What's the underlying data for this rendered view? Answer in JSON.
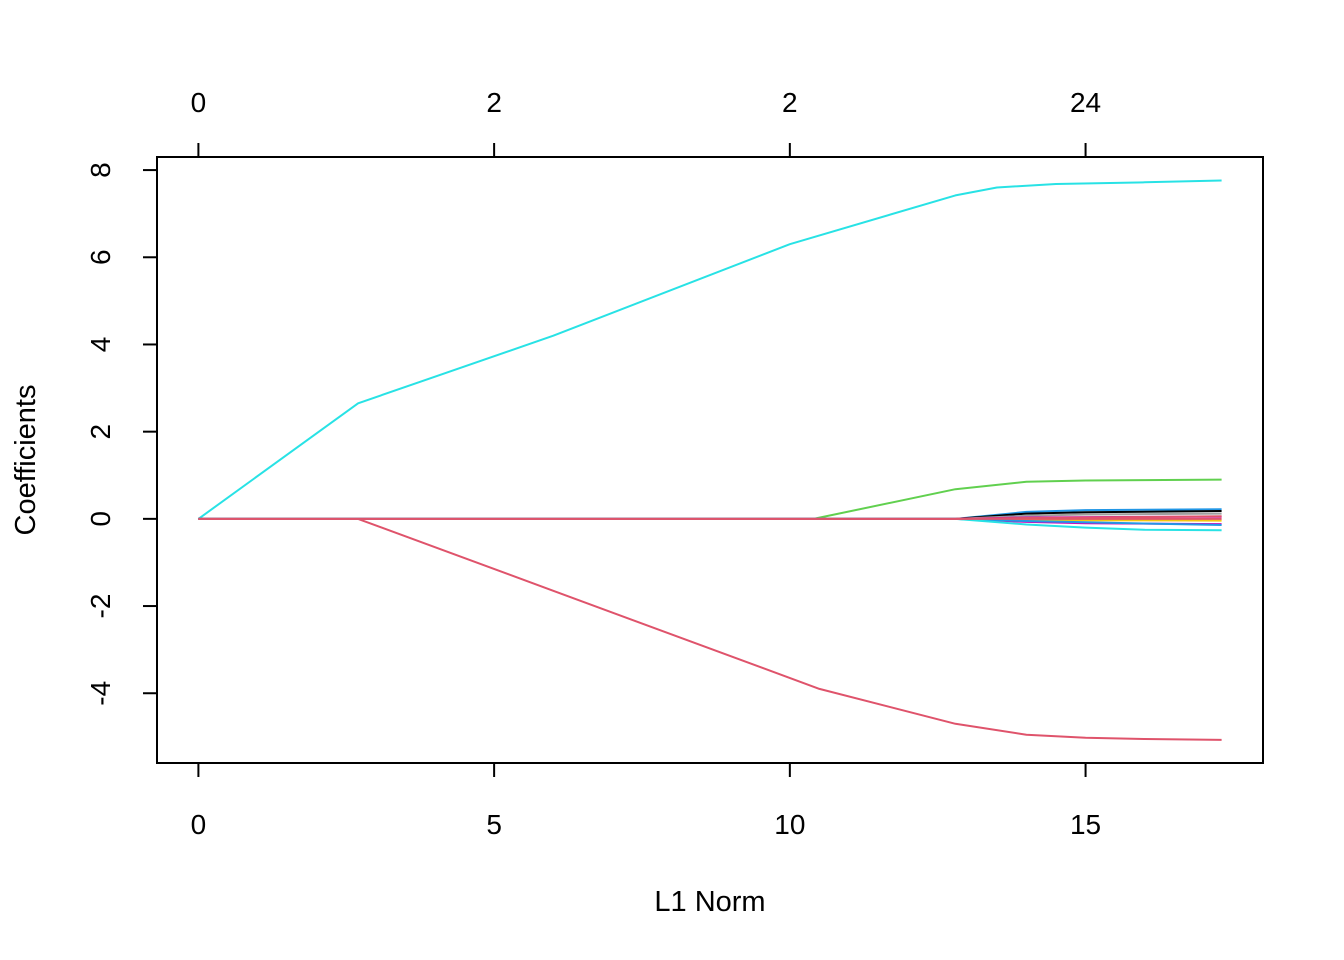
{
  "chart_data": {
    "type": "line",
    "title": "",
    "xlabel": "L1 Norm",
    "ylabel": "Coefficients",
    "xlim": [
      -0.7,
      18
    ],
    "ylim": [
      -5.6,
      8.3
    ],
    "x_ticks": [
      {
        "value": 0,
        "label": "0"
      },
      {
        "value": 5,
        "label": "5"
      },
      {
        "value": 10,
        "label": "10"
      },
      {
        "value": 15,
        "label": "15"
      }
    ],
    "y_ticks": [
      {
        "value": -4,
        "label": "-4"
      },
      {
        "value": -2,
        "label": "-2"
      },
      {
        "value": 0,
        "label": "0"
      },
      {
        "value": 2,
        "label": "2"
      },
      {
        "value": 4,
        "label": "4"
      },
      {
        "value": 6,
        "label": "6"
      },
      {
        "value": 8,
        "label": "8"
      }
    ],
    "top_axis": {
      "ticks": [
        {
          "value": 0,
          "label": "0"
        },
        {
          "value": 5,
          "label": "2"
        },
        {
          "value": 10,
          "label": "2"
        },
        {
          "value": 15,
          "label": "24"
        }
      ]
    },
    "grid": false,
    "legend": "none",
    "series": [
      {
        "color": "#28E2E5",
        "points": [
          [
            0,
            0
          ],
          [
            2.7,
            2.65
          ],
          [
            6,
            4.2
          ],
          [
            10,
            6.3
          ],
          [
            12.8,
            7.42
          ],
          [
            13.5,
            7.6
          ],
          [
            14.5,
            7.68
          ],
          [
            16,
            7.72
          ],
          [
            17.3,
            7.76
          ]
        ]
      },
      {
        "color": "#DF536B",
        "points": [
          [
            0,
            0
          ],
          [
            2.7,
            0
          ],
          [
            6,
            -1.65
          ],
          [
            10.5,
            -3.9
          ],
          [
            12.8,
            -4.7
          ],
          [
            14,
            -4.95
          ],
          [
            15,
            -5.02
          ],
          [
            16,
            -5.05
          ],
          [
            17.3,
            -5.07
          ]
        ]
      },
      {
        "color": "#61D04F",
        "points": [
          [
            0,
            0
          ],
          [
            10.4,
            0
          ],
          [
            12.8,
            0.68
          ],
          [
            14,
            0.85
          ],
          [
            15,
            0.88
          ],
          [
            16,
            0.89
          ],
          [
            17.3,
            0.9
          ]
        ]
      },
      {
        "color": "#2297E6",
        "points": [
          [
            0,
            0
          ],
          [
            12.8,
            0
          ],
          [
            14,
            0.16
          ],
          [
            15,
            0.2
          ],
          [
            17.3,
            0.22
          ]
        ]
      },
      {
        "color": "#000000",
        "points": [
          [
            0,
            0
          ],
          [
            12.8,
            0
          ],
          [
            14,
            0.12
          ],
          [
            15,
            0.15
          ],
          [
            17.3,
            0.18
          ]
        ]
      },
      {
        "color": "#9E9E9E",
        "points": [
          [
            0,
            0
          ],
          [
            12.8,
            0
          ],
          [
            14,
            0.07
          ],
          [
            15,
            0.1
          ],
          [
            17.3,
            0.12
          ]
        ]
      },
      {
        "color": "#CD0BBC",
        "points": [
          [
            0,
            0
          ],
          [
            12.8,
            0
          ],
          [
            14,
            0.03
          ],
          [
            15,
            0.04
          ],
          [
            17.3,
            0.05
          ]
        ]
      },
      {
        "color": "#F5C710",
        "points": [
          [
            0,
            0
          ],
          [
            12.8,
            0
          ],
          [
            14,
            -0.02
          ],
          [
            15,
            -0.03
          ],
          [
            17.3,
            -0.04
          ]
        ]
      },
      {
        "color": "#CD0BBC",
        "points": [
          [
            0,
            0
          ],
          [
            12.8,
            0
          ],
          [
            14,
            -0.07
          ],
          [
            15,
            -0.1
          ],
          [
            17.3,
            -0.12
          ]
        ]
      },
      {
        "color": "#2297E6",
        "points": [
          [
            0,
            0
          ],
          [
            12.8,
            0
          ],
          [
            14,
            -0.05
          ],
          [
            15,
            -0.08
          ],
          [
            17.3,
            -0.14
          ]
        ]
      },
      {
        "color": "#28E2E5",
        "points": [
          [
            0,
            0
          ],
          [
            12.8,
            0
          ],
          [
            14,
            -0.13
          ],
          [
            15,
            -0.2
          ],
          [
            16,
            -0.25
          ],
          [
            17.3,
            -0.26
          ]
        ]
      },
      {
        "color": "#DF536B",
        "points": [
          [
            0,
            0
          ],
          [
            12.8,
            0
          ],
          [
            14,
            0.02
          ],
          [
            15,
            0.03
          ],
          [
            17.3,
            0.06
          ]
        ]
      },
      {
        "color": "#DF536B",
        "points": [
          [
            0,
            0
          ],
          [
            2.7,
            0
          ],
          [
            10,
            0
          ],
          [
            17.3,
            0
          ]
        ]
      }
    ]
  }
}
